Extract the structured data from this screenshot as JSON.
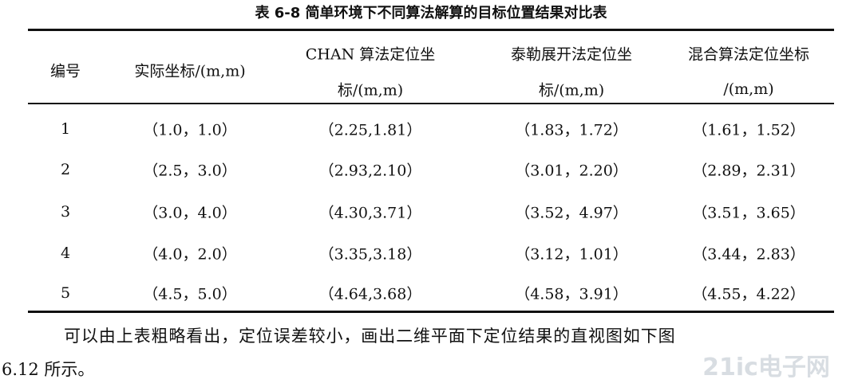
{
  "caption": "表 6-8 简单环境下不同算法解算的目标位置结果对比表",
  "table": {
    "header": [
      [
        "编号"
      ],
      [
        "实际坐标/(m,m)"
      ],
      [
        "CHAN 算法定位坐",
        "标/(m,m)"
      ],
      [
        "泰勒展开法定位坐",
        "标/(m,m)"
      ],
      [
        "混合算法定位坐标",
        "/(m,m)"
      ]
    ],
    "rows": [
      [
        "1",
        "（1.0，1.0）",
        "（2.25,1.81）",
        "（1.83，1.72）",
        "（1.61，1.52）"
      ],
      [
        "2",
        "（2.5，3.0）",
        "（2.93,2.10）",
        "（3.01，2.20）",
        "（2.89，2.31）"
      ],
      [
        "3",
        "（3.0，4.0）",
        "（4.30,3.71）",
        "（3.52，4.97）",
        "（3.51，3.65）"
      ],
      [
        "4",
        "（4.0，2.0）",
        "（3.35,3.18）",
        "（3.12，1.01）",
        "（3.44，2.83）"
      ],
      [
        "5",
        "（4.5，5.0）",
        "（4.64,3.68）",
        "（4.58，3.91）",
        "（4.55，4.22）"
      ]
    ]
  },
  "paragraph": [
    "可以由上表粗略看出，定位误差较小，画出二维平面下定位结果的直视图如下图",
    "6.12 所示。"
  ],
  "watermark": "21ic电子网"
}
